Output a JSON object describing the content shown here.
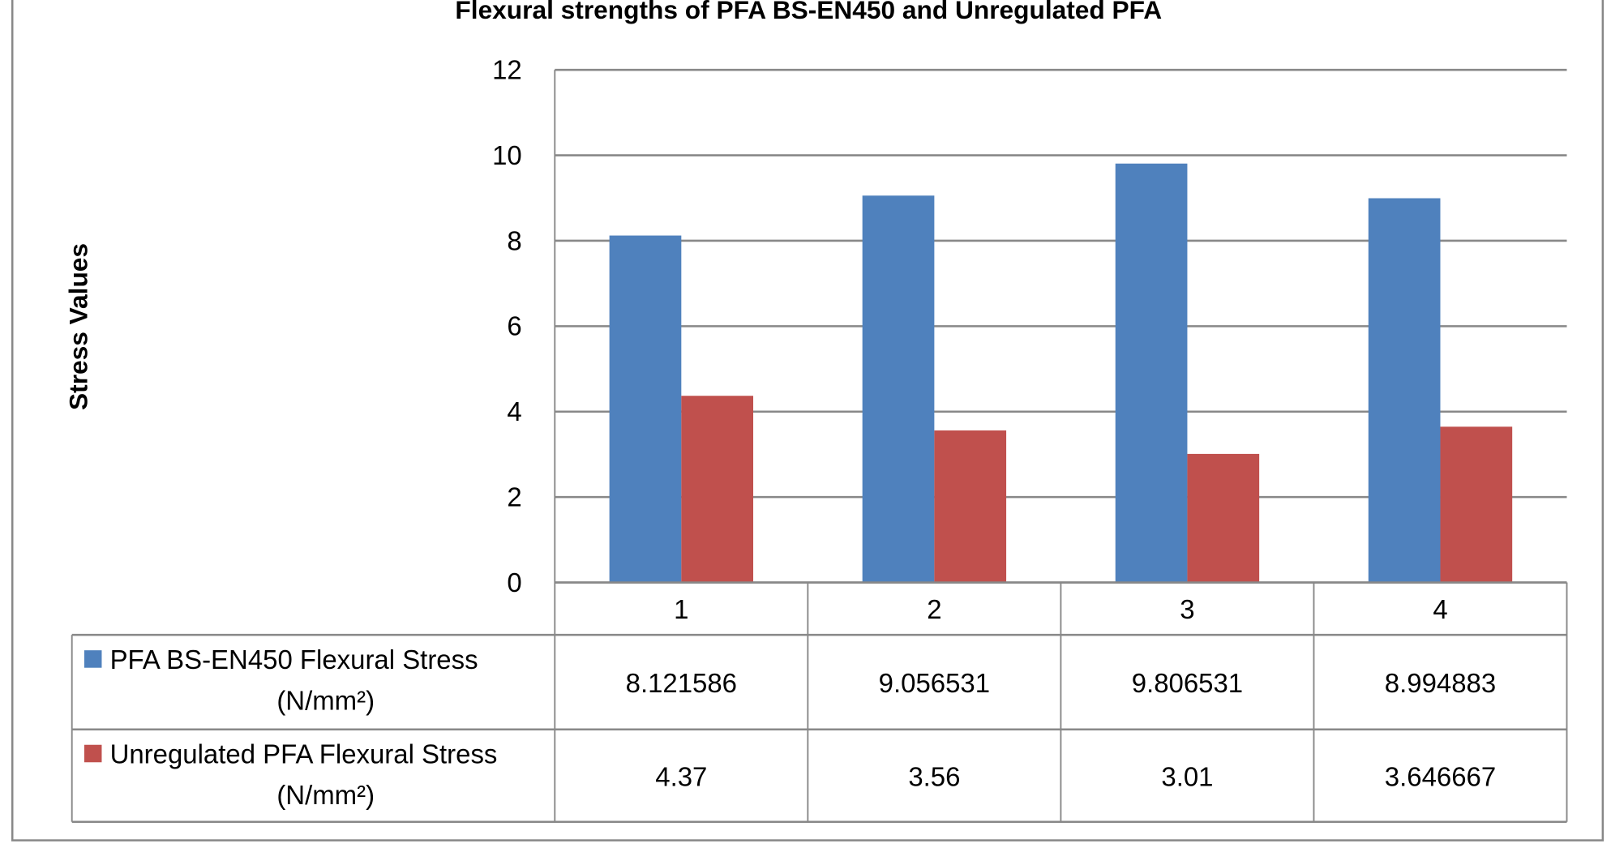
{
  "chart_data": {
    "type": "bar",
    "title": "Flexural strengths of PFA BS-EN450 and Unregulated PFA",
    "xlabel": "",
    "ylabel": "Stress Values",
    "ylim": [
      0,
      12
    ],
    "yticks": [
      0,
      2,
      4,
      6,
      8,
      10,
      12
    ],
    "grid": true,
    "legend": "data-table",
    "categories": [
      "1",
      "2",
      "3",
      "4"
    ],
    "series": [
      {
        "name": "PFA BS-EN450 Flexural Stress",
        "unit": "(N/mm²)",
        "color": "#4F81BD",
        "values": [
          8.121586,
          9.056531,
          9.806531,
          8.994883
        ],
        "labels": [
          "8.121586",
          "9.056531",
          "9.806531",
          "8.994883"
        ]
      },
      {
        "name": "Unregulated PFA Flexural Stress",
        "unit": "(N/mm²)",
        "color": "#C0504D",
        "values": [
          4.37,
          3.56,
          3.01,
          3.646667
        ],
        "labels": [
          "4.37",
          "3.56",
          "3.01",
          "3.646667"
        ]
      }
    ]
  }
}
